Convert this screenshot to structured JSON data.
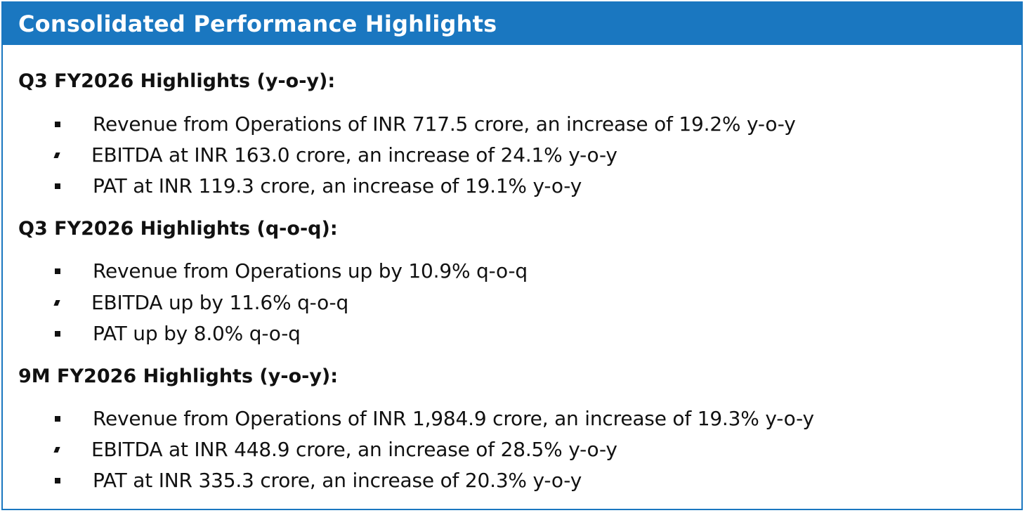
{
  "panel": {
    "title": "Consolidated Performance Highlights"
  },
  "sections": [
    {
      "heading": "Q3 FY2026 Highlights (y-o-y):",
      "items": [
        "Revenue from Operations of INR 717.5 crore, an increase of 19.2% y-o-y",
        "EBITDA at INR 163.0 crore, an increase of 24.1% y-o-y",
        "PAT at INR 119.3 crore, an increase of 19.1% y-o-y"
      ]
    },
    {
      "heading": "Q3 FY2026 Highlights (q-o-q):",
      "items": [
        "Revenue from Operations up by 10.9% q-o-q",
        "EBITDA up by 11.6% q-o-q",
        "PAT up by 8.0% q-o-q"
      ]
    },
    {
      "heading": "9M FY2026 Highlights (y-o-y):",
      "items": [
        "Revenue from Operations of INR 1,984.9 crore, an increase of 19.3% y-o-y",
        "EBITDA at INR 448.9 crore, an increase of 28.5% y-o-y",
        "PAT at INR 335.3 crore, an increase of 20.3% y-o-y"
      ]
    }
  ],
  "colors": {
    "accent": "#1a77c0",
    "text": "#111111"
  }
}
